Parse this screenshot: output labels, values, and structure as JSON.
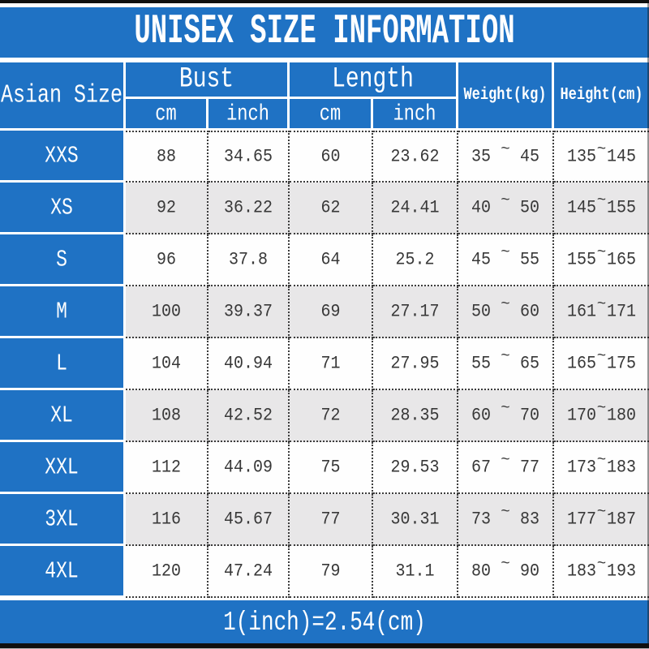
{
  "title": "UNISEX SIZE INFORMATION",
  "footer_note": "1(inch)=2.54(cm)",
  "colors": {
    "accent_blue": "#1f72c4",
    "alt_row_gray": "#e8e7e8",
    "dotted_border": "#3c3c3c",
    "header_text": "#ffffff",
    "data_text": "#383838"
  },
  "chart_data": {
    "type": "table",
    "title": "UNISEX SIZE INFORMATION",
    "footnote": "1(inch)=2.54(cm)",
    "corner_header": "Asian Size",
    "column_groups": [
      {
        "label": "Bust",
        "subcolumns": [
          "cm",
          "inch"
        ]
      },
      {
        "label": "Length",
        "subcolumns": [
          "cm",
          "inch"
        ]
      }
    ],
    "columns_single": [
      "Weight(kg)",
      "Height(cm)"
    ],
    "range_separator": "~",
    "rows": [
      {
        "size": "XXS",
        "bust_cm": "88",
        "bust_inch": "34.65",
        "length_cm": "60",
        "length_inch": "23.62",
        "weight_kg": [
          "35",
          "45"
        ],
        "height_cm": [
          "135",
          "145"
        ]
      },
      {
        "size": "XS",
        "bust_cm": "92",
        "bust_inch": "36.22",
        "length_cm": "62",
        "length_inch": "24.41",
        "weight_kg": [
          "40",
          "50"
        ],
        "height_cm": [
          "145",
          "155"
        ]
      },
      {
        "size": "S",
        "bust_cm": "96",
        "bust_inch": "37.8",
        "length_cm": "64",
        "length_inch": "25.2",
        "weight_kg": [
          "45",
          "55"
        ],
        "height_cm": [
          "155",
          "165"
        ]
      },
      {
        "size": "M",
        "bust_cm": "100",
        "bust_inch": "39.37",
        "length_cm": "69",
        "length_inch": "27.17",
        "weight_kg": [
          "50",
          "60"
        ],
        "height_cm": [
          "161",
          "171"
        ]
      },
      {
        "size": "L",
        "bust_cm": "104",
        "bust_inch": "40.94",
        "length_cm": "71",
        "length_inch": "27.95",
        "weight_kg": [
          "55",
          "65"
        ],
        "height_cm": [
          "165",
          "175"
        ]
      },
      {
        "size": "XL",
        "bust_cm": "108",
        "bust_inch": "42.52",
        "length_cm": "72",
        "length_inch": "28.35",
        "weight_kg": [
          "60",
          "70"
        ],
        "height_cm": [
          "170",
          "180"
        ]
      },
      {
        "size": "XXL",
        "bust_cm": "112",
        "bust_inch": "44.09",
        "length_cm": "75",
        "length_inch": "29.53",
        "weight_kg": [
          "67",
          "77"
        ],
        "height_cm": [
          "173",
          "183"
        ]
      },
      {
        "size": "3XL",
        "bust_cm": "116",
        "bust_inch": "45.67",
        "length_cm": "77",
        "length_inch": "30.31",
        "weight_kg": [
          "73",
          "83"
        ],
        "height_cm": [
          "177",
          "187"
        ]
      },
      {
        "size": "4XL",
        "bust_cm": "120",
        "bust_inch": "47.24",
        "length_cm": "79",
        "length_inch": "31.1",
        "weight_kg": [
          "80",
          "90"
        ],
        "height_cm": [
          "183",
          "193"
        ]
      }
    ]
  }
}
